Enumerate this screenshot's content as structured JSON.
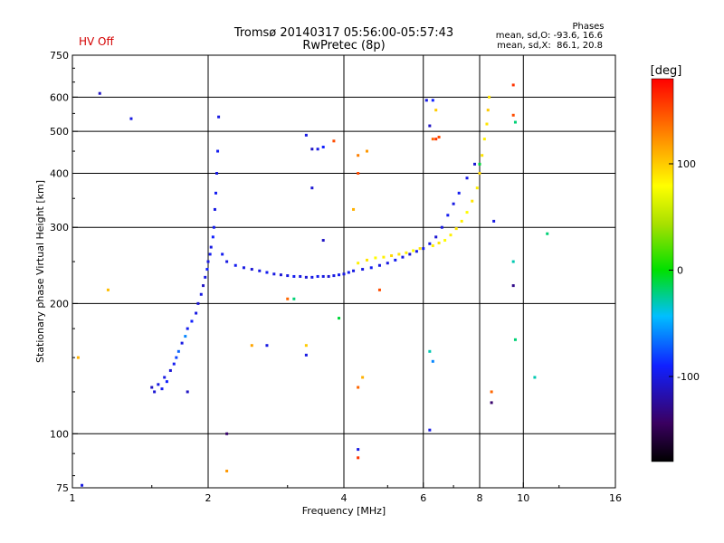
{
  "status": {
    "hv_label": "HV Off",
    "hv_color": "#d40000"
  },
  "phases_box": {
    "title": "Phases",
    "line1": "mean, sd,O: -93.6, 16.6",
    "line2": "mean, sd,X:  86.1, 20.8"
  },
  "colorbar": {
    "unit_label": "[deg]",
    "ticks": [
      {
        "value": 100,
        "label": "100"
      },
      {
        "value": 0,
        "label": "0"
      },
      {
        "value": -100,
        "label": "-100"
      }
    ],
    "range": [
      -180,
      180
    ]
  },
  "chart_data": {
    "type": "scatter",
    "title": "Tromsø 20140317 05:56:00-05:57:43",
    "subtitle": "RwPretec (8p)",
    "xlabel": "Frequency [MHz]",
    "ylabel": "Stationary phase Virtual Height [km]",
    "x_scale": "log2",
    "y_scale": "log",
    "xlim": [
      1,
      16
    ],
    "ylim": [
      75,
      750
    ],
    "x_ticks": [
      {
        "value": 1,
        "label": "1"
      },
      {
        "value": 2,
        "label": "2"
      },
      {
        "value": 4,
        "label": "4"
      },
      {
        "value": 6,
        "label": "6"
      },
      {
        "value": 8,
        "label": "8"
      },
      {
        "value": 10,
        "label": "10"
      },
      {
        "value": 16,
        "label": "16"
      }
    ],
    "y_ticks": [
      {
        "value": 75,
        "label": "75"
      },
      {
        "value": 100,
        "label": "100"
      },
      {
        "value": 200,
        "label": "200"
      },
      {
        "value": 300,
        "label": "300"
      },
      {
        "value": 400,
        "label": "400"
      },
      {
        "value": 500,
        "label": "500"
      },
      {
        "value": 600,
        "label": "600"
      },
      {
        "value": 750,
        "label": "750"
      }
    ],
    "grid": true,
    "color_by": "phase_deg",
    "series": [
      {
        "points": [
          {
            "x": 1.5,
            "y": 128,
            "phase": -110
          },
          {
            "x": 1.52,
            "y": 125,
            "phase": -105
          },
          {
            "x": 1.55,
            "y": 130,
            "phase": -100
          },
          {
            "x": 1.58,
            "y": 127,
            "phase": -95
          },
          {
            "x": 1.6,
            "y": 135,
            "phase": -100
          },
          {
            "x": 1.62,
            "y": 132,
            "phase": -90
          },
          {
            "x": 1.65,
            "y": 140,
            "phase": -105
          },
          {
            "x": 1.68,
            "y": 145,
            "phase": -95
          },
          {
            "x": 1.7,
            "y": 150,
            "phase": -80
          },
          {
            "x": 1.72,
            "y": 155,
            "phase": -70
          },
          {
            "x": 1.75,
            "y": 162,
            "phase": -100
          },
          {
            "x": 1.78,
            "y": 168,
            "phase": -60
          },
          {
            "x": 1.8,
            "y": 175,
            "phase": -95
          },
          {
            "x": 1.84,
            "y": 182,
            "phase": -90
          },
          {
            "x": 1.88,
            "y": 190,
            "phase": -100
          },
          {
            "x": 1.9,
            "y": 200,
            "phase": -105
          },
          {
            "x": 1.93,
            "y": 210,
            "phase": -100
          },
          {
            "x": 1.95,
            "y": 220,
            "phase": -110
          },
          {
            "x": 1.97,
            "y": 230,
            "phase": -100
          },
          {
            "x": 1.99,
            "y": 240,
            "phase": -90
          },
          {
            "x": 2.0,
            "y": 250,
            "phase": -100
          },
          {
            "x": 2.02,
            "y": 260,
            "phase": -95
          },
          {
            "x": 2.03,
            "y": 270,
            "phase": -100
          },
          {
            "x": 2.05,
            "y": 285,
            "phase": -90
          },
          {
            "x": 2.06,
            "y": 300,
            "phase": -95
          },
          {
            "x": 2.07,
            "y": 330,
            "phase": -100
          },
          {
            "x": 2.08,
            "y": 360,
            "phase": -95
          },
          {
            "x": 2.09,
            "y": 400,
            "phase": -100
          },
          {
            "x": 2.1,
            "y": 450,
            "phase": -95
          },
          {
            "x": 2.11,
            "y": 540,
            "phase": -100
          },
          {
            "x": 2.15,
            "y": 260,
            "phase": -95
          },
          {
            "x": 2.2,
            "y": 250,
            "phase": -100
          },
          {
            "x": 2.3,
            "y": 245,
            "phase": -95
          },
          {
            "x": 2.4,
            "y": 242,
            "phase": -100
          },
          {
            "x": 2.5,
            "y": 240,
            "phase": -105
          },
          {
            "x": 2.6,
            "y": 238,
            "phase": -100
          },
          {
            "x": 2.7,
            "y": 236,
            "phase": -95
          },
          {
            "x": 2.8,
            "y": 234,
            "phase": -100
          },
          {
            "x": 2.9,
            "y": 233,
            "phase": -105
          },
          {
            "x": 3.0,
            "y": 232,
            "phase": -100
          },
          {
            "x": 3.1,
            "y": 231,
            "phase": -95
          },
          {
            "x": 3.2,
            "y": 231,
            "phase": -100
          },
          {
            "x": 3.3,
            "y": 230,
            "phase": -105
          },
          {
            "x": 3.4,
            "y": 230,
            "phase": -100
          },
          {
            "x": 3.5,
            "y": 231,
            "phase": -95
          },
          {
            "x": 3.6,
            "y": 231,
            "phase": -100
          },
          {
            "x": 3.7,
            "y": 231,
            "phase": -105
          },
          {
            "x": 3.8,
            "y": 232,
            "phase": -100
          },
          {
            "x": 3.9,
            "y": 233,
            "phase": -95
          },
          {
            "x": 4.0,
            "y": 234,
            "phase": -100
          },
          {
            "x": 4.1,
            "y": 236,
            "phase": -95
          },
          {
            "x": 4.2,
            "y": 238,
            "phase": -100
          },
          {
            "x": 4.4,
            "y": 240,
            "phase": -100
          },
          {
            "x": 4.6,
            "y": 242,
            "phase": -95
          },
          {
            "x": 4.8,
            "y": 245,
            "phase": -100
          },
          {
            "x": 5.0,
            "y": 248,
            "phase": -100
          },
          {
            "x": 5.2,
            "y": 252,
            "phase": -95
          },
          {
            "x": 5.4,
            "y": 256,
            "phase": -100
          },
          {
            "x": 5.6,
            "y": 260,
            "phase": -105
          },
          {
            "x": 5.8,
            "y": 264,
            "phase": -100
          },
          {
            "x": 6.0,
            "y": 268,
            "phase": -95
          },
          {
            "x": 6.2,
            "y": 275,
            "phase": -100
          },
          {
            "x": 6.4,
            "y": 285,
            "phase": -105
          },
          {
            "x": 6.6,
            "y": 300,
            "phase": -100
          },
          {
            "x": 6.8,
            "y": 320,
            "phase": -95
          },
          {
            "x": 7.0,
            "y": 340,
            "phase": -100
          },
          {
            "x": 7.2,
            "y": 360,
            "phase": -95
          },
          {
            "x": 7.5,
            "y": 390,
            "phase": -100
          },
          {
            "x": 7.8,
            "y": 420,
            "phase": -105
          },
          {
            "x": 4.3,
            "y": 248,
            "phase": 85
          },
          {
            "x": 4.5,
            "y": 252,
            "phase": 90
          },
          {
            "x": 4.7,
            "y": 255,
            "phase": 80
          },
          {
            "x": 4.9,
            "y": 256,
            "phase": 85
          },
          {
            "x": 5.1,
            "y": 258,
            "phase": 95
          },
          {
            "x": 5.3,
            "y": 260,
            "phase": 90
          },
          {
            "x": 5.5,
            "y": 262,
            "phase": 85
          },
          {
            "x": 5.7,
            "y": 265,
            "phase": 80
          },
          {
            "x": 5.9,
            "y": 268,
            "phase": 90
          },
          {
            "x": 6.3,
            "y": 272,
            "phase": 85
          },
          {
            "x": 6.5,
            "y": 276,
            "phase": 90
          },
          {
            "x": 6.7,
            "y": 280,
            "phase": 80
          },
          {
            "x": 6.9,
            "y": 288,
            "phase": 85
          },
          {
            "x": 7.1,
            "y": 298,
            "phase": 90
          },
          {
            "x": 7.3,
            "y": 310,
            "phase": 85
          },
          {
            "x": 7.5,
            "y": 325,
            "phase": 80
          },
          {
            "x": 7.7,
            "y": 345,
            "phase": 90
          },
          {
            "x": 7.9,
            "y": 370,
            "phase": 85
          },
          {
            "x": 8.0,
            "y": 400,
            "phase": 95
          },
          {
            "x": 8.1,
            "y": 440,
            "phase": 90
          },
          {
            "x": 8.2,
            "y": 480,
            "phase": 85
          },
          {
            "x": 8.3,
            "y": 520,
            "phase": 90
          },
          {
            "x": 8.35,
            "y": 560,
            "phase": 100
          },
          {
            "x": 8.4,
            "y": 600,
            "phase": 90
          },
          {
            "x": 1.15,
            "y": 612,
            "phase": -110
          },
          {
            "x": 1.35,
            "y": 535,
            "phase": -100
          },
          {
            "x": 1.03,
            "y": 150,
            "phase": 110
          },
          {
            "x": 1.05,
            "y": 76,
            "phase": -100
          },
          {
            "x": 1.2,
            "y": 215,
            "phase": 105
          },
          {
            "x": 1.8,
            "y": 125,
            "phase": -110
          },
          {
            "x": 2.2,
            "y": 100,
            "phase": -140
          },
          {
            "x": 2.2,
            "y": 82,
            "phase": 120
          },
          {
            "x": 2.5,
            "y": 160,
            "phase": 115
          },
          {
            "x": 2.7,
            "y": 160,
            "phase": -100
          },
          {
            "x": 3.0,
            "y": 205,
            "phase": 140
          },
          {
            "x": 3.1,
            "y": 205,
            "phase": -20
          },
          {
            "x": 3.3,
            "y": 490,
            "phase": -100
          },
          {
            "x": 3.4,
            "y": 455,
            "phase": -110
          },
          {
            "x": 3.5,
            "y": 455,
            "phase": -100
          },
          {
            "x": 3.6,
            "y": 460,
            "phase": -90
          },
          {
            "x": 3.4,
            "y": 370,
            "phase": -105
          },
          {
            "x": 3.3,
            "y": 160,
            "phase": 100
          },
          {
            "x": 3.3,
            "y": 152,
            "phase": -100
          },
          {
            "x": 3.6,
            "y": 280,
            "phase": -110
          },
          {
            "x": 3.8,
            "y": 475,
            "phase": 150
          },
          {
            "x": 3.9,
            "y": 185,
            "phase": -10
          },
          {
            "x": 4.2,
            "y": 330,
            "phase": 110
          },
          {
            "x": 4.3,
            "y": 400,
            "phase": 150
          },
          {
            "x": 4.3,
            "y": 440,
            "phase": 130
          },
          {
            "x": 4.5,
            "y": 450,
            "phase": 120
          },
          {
            "x": 4.3,
            "y": 128,
            "phase": 140
          },
          {
            "x": 4.4,
            "y": 135,
            "phase": 110
          },
          {
            "x": 4.3,
            "y": 92,
            "phase": -100
          },
          {
            "x": 4.3,
            "y": 88,
            "phase": 160
          },
          {
            "x": 4.8,
            "y": 215,
            "phase": 150
          },
          {
            "x": 6.1,
            "y": 590,
            "phase": -100
          },
          {
            "x": 6.3,
            "y": 590,
            "phase": -90
          },
          {
            "x": 6.4,
            "y": 560,
            "phase": 100
          },
          {
            "x": 6.2,
            "y": 515,
            "phase": -110
          },
          {
            "x": 6.3,
            "y": 480,
            "phase": 140
          },
          {
            "x": 6.4,
            "y": 480,
            "phase": 160
          },
          {
            "x": 6.5,
            "y": 485,
            "phase": 150
          },
          {
            "x": 6.2,
            "y": 155,
            "phase": -30
          },
          {
            "x": 6.3,
            "y": 147,
            "phase": -60
          },
          {
            "x": 6.2,
            "y": 102,
            "phase": -100
          },
          {
            "x": 8.0,
            "y": 420,
            "phase": -10
          },
          {
            "x": 8.5,
            "y": 125,
            "phase": 140
          },
          {
            "x": 8.5,
            "y": 118,
            "phase": -140
          },
          {
            "x": 8.6,
            "y": 310,
            "phase": -100
          },
          {
            "x": 9.5,
            "y": 640,
            "phase": 160
          },
          {
            "x": 9.5,
            "y": 545,
            "phase": 150
          },
          {
            "x": 9.6,
            "y": 525,
            "phase": -20
          },
          {
            "x": 9.5,
            "y": 250,
            "phase": -30
          },
          {
            "x": 9.5,
            "y": 220,
            "phase": -130
          },
          {
            "x": 9.6,
            "y": 165,
            "phase": -20
          },
          {
            "x": 10.6,
            "y": 135,
            "phase": -30
          },
          {
            "x": 11.3,
            "y": 290,
            "phase": -20
          }
        ]
      }
    ]
  }
}
